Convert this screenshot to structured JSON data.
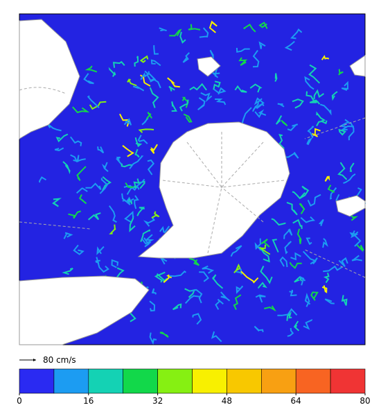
{
  "legend": {
    "arrow_label": "80 cm/s"
  },
  "colorbar": {
    "lim": [
      0,
      80
    ],
    "ticks": [
      0,
      16,
      32,
      48,
      64,
      80
    ],
    "colors": [
      "#2a2af2",
      "#1c9cf2",
      "#14d2b4",
      "#12d84a",
      "#86f012",
      "#f8f000",
      "#f8c800",
      "#f8a012",
      "#f86422",
      "#f03434"
    ]
  }
}
